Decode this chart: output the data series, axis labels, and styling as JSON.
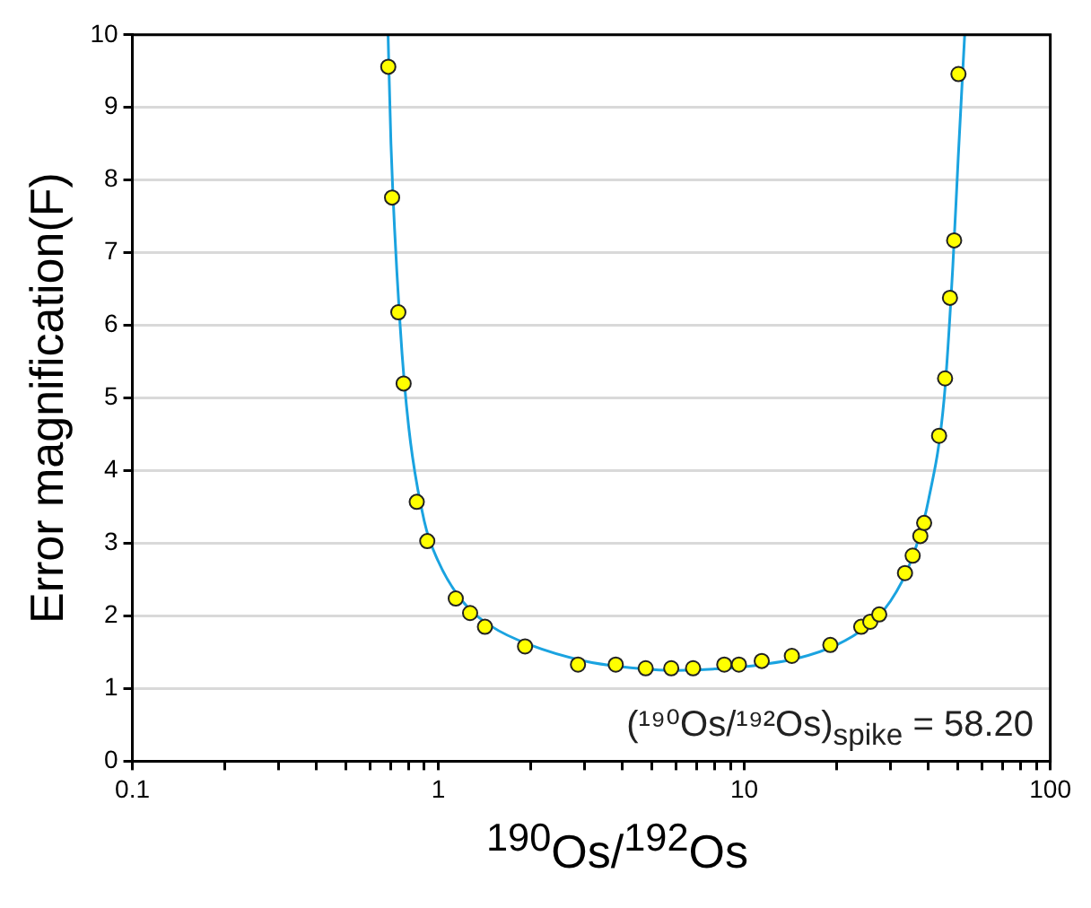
{
  "chart_data": {
    "type": "scatter",
    "xlabel": "$^{190}$Os/$^{192}$Os",
    "ylabel": "Error magnification(F)",
    "log": "x",
    "xlim": [
      0.1,
      100
    ],
    "xticks": [
      0.1,
      {
        "value": 0.2,
        "label": null
      },
      {
        "value": 0.3,
        "label": null
      },
      {
        "value": 0.4,
        "label": null
      },
      {
        "value": 0.5,
        "label": null
      },
      {
        "value": 0.6,
        "label": null
      },
      {
        "value": 0.7,
        "label": null
      },
      {
        "value": 0.8,
        "label": null
      },
      {
        "value": 0.9,
        "label": null
      },
      1,
      {
        "value": 2,
        "label": null
      },
      {
        "value": 3,
        "label": null
      },
      {
        "value": 4,
        "label": null
      },
      {
        "value": 5,
        "label": null
      },
      {
        "value": 6,
        "label": null
      },
      {
        "value": 7,
        "label": null
      },
      {
        "value": 8,
        "label": null
      },
      {
        "value": 9,
        "label": null
      },
      10,
      {
        "value": 20,
        "label": null
      },
      {
        "value": 30,
        "label": null
      },
      {
        "value": 40,
        "label": null
      },
      {
        "value": 50,
        "label": null
      },
      {
        "value": 60,
        "label": null
      },
      {
        "value": 70,
        "label": null
      },
      {
        "value": 80,
        "label": null
      },
      {
        "value": 90,
        "label": null
      },
      100
    ],
    "ylim": [
      0,
      10
    ],
    "yticks": [
      0,
      1,
      2,
      3,
      4,
      5,
      6,
      7,
      8,
      9,
      10
    ],
    "grid": "y",
    "legend": false,
    "marker": "circle",
    "annotations": [
      "(¹⁹⁰Os/¹⁹²Os)$_{spike}$ = 58.20"
    ],
    "series": [
      {
        "type": "line",
        "marker": "none",
        "color": "#1aa3e0",
        "x": [
          0.685,
          0.7,
          0.75,
          0.8,
          0.9,
          1.0,
          1.2,
          1.5,
          2,
          3,
          4,
          6,
          8,
          10,
          15,
          20,
          25,
          30,
          35,
          40,
          45,
          48,
          50,
          52.5
        ],
        "values": [
          10,
          8.5,
          6.0,
          4.6,
          3.3,
          2.75,
          2.2,
          1.85,
          1.6,
          1.38,
          1.3,
          1.25,
          1.27,
          1.3,
          1.42,
          1.6,
          1.85,
          2.2,
          2.75,
          3.6,
          5.0,
          6.8,
          8.3,
          10
        ]
      },
      {
        "color": "#ffff00",
        "x": [
          0.686,
          0.706,
          0.74,
          0.77,
          0.85,
          0.92,
          1.14,
          1.27,
          1.42,
          1.92,
          2.86,
          3.8,
          4.76,
          5.77,
          6.8,
          8.6,
          9.6,
          11.4,
          14.3,
          19.1,
          24.1,
          25.8,
          27.6,
          33.5,
          35.5,
          37.6,
          38.7,
          43.3,
          45.3,
          47.0,
          48.5,
          50.1
        ],
        "values": [
          9.56,
          7.76,
          6.18,
          5.2,
          3.57,
          3.03,
          2.24,
          2.04,
          1.85,
          1.58,
          1.33,
          1.33,
          1.28,
          1.28,
          1.28,
          1.33,
          1.33,
          1.38,
          1.45,
          1.6,
          1.85,
          1.92,
          2.02,
          2.59,
          2.83,
          3.1,
          3.28,
          4.48,
          5.27,
          6.38,
          7.17,
          9.46
        ]
      }
    ]
  }
}
